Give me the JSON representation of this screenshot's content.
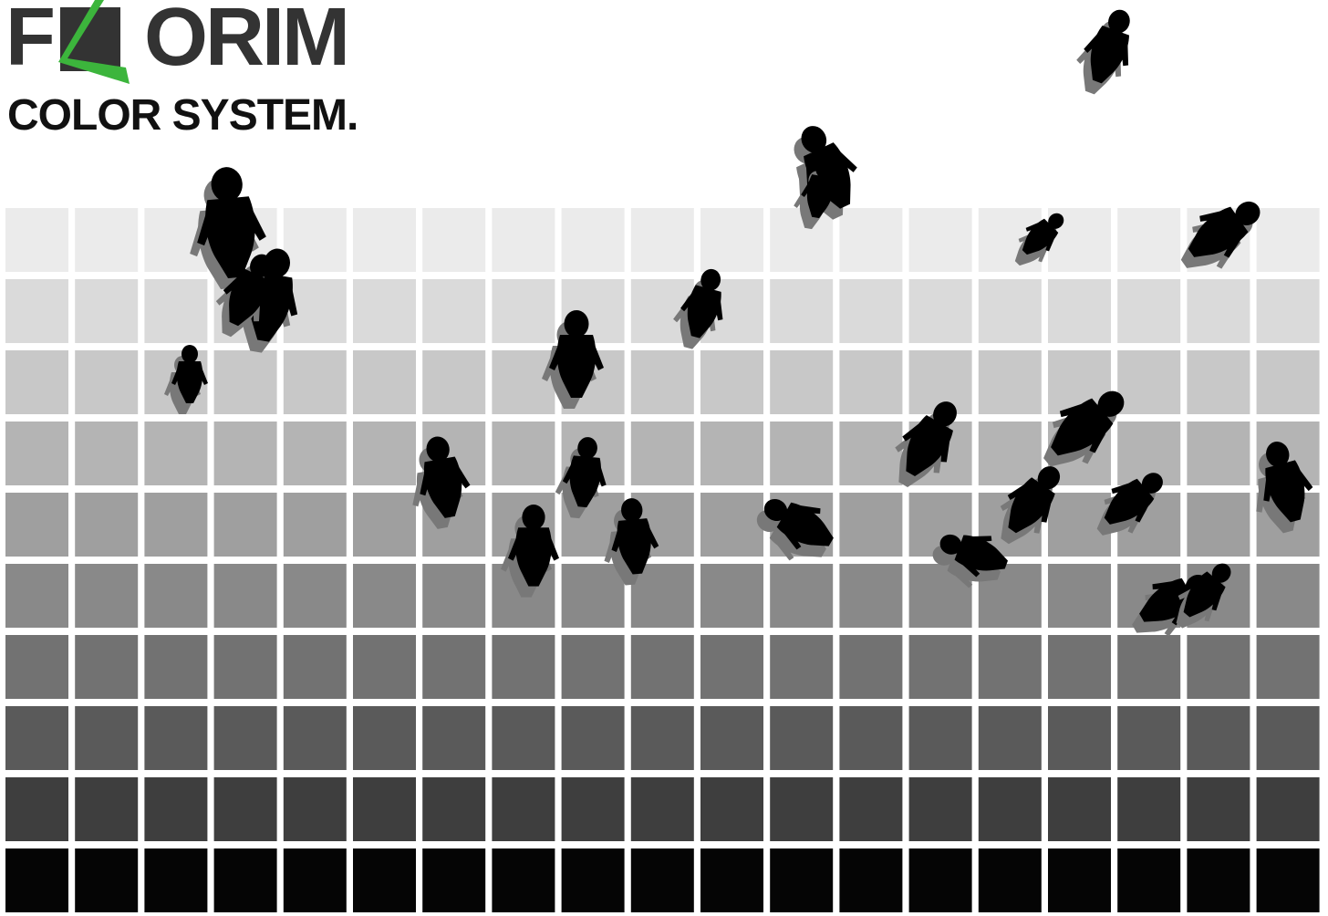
{
  "brand": {
    "first_letter": "F",
    "rest": "ORIM",
    "tagline": "COLOR SYSTEM.",
    "text_color": "#333333",
    "accent": "#3cb53c"
  },
  "palette": {
    "columns": 19,
    "row_colors": [
      "#ebebeb",
      "#dadada",
      "#c8c8c8",
      "#b4b4b4",
      "#9f9f9f",
      "#898989",
      "#727272",
      "#5a5a5a",
      "#3e3e3e",
      "#050505"
    ]
  },
  "figures": {
    "count": 24,
    "color": "#000000",
    "shadow_color": "#787878",
    "icon": "person-silhouette-icon"
  }
}
